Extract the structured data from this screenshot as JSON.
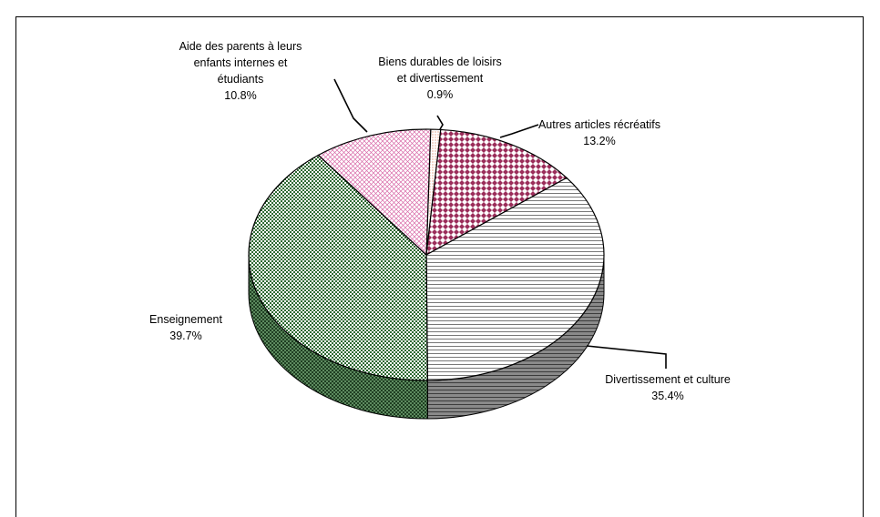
{
  "chart_data": {
    "type": "pie",
    "title": "",
    "three_d": true,
    "legend": "none",
    "slices": [
      {
        "label_lines": [
          "Biens durables de loisirs",
          "et divertissement"
        ],
        "value": 0.9,
        "value_label": "0.9%",
        "fill": "#f4d8cc",
        "pattern": "dense-dots"
      },
      {
        "label_lines": [
          "Autres articles récréatifs"
        ],
        "value": 13.2,
        "value_label": "13.2%",
        "fill": "#9b2d5a",
        "pattern": "diamonds"
      },
      {
        "label_lines": [
          "Divertissement et culture"
        ],
        "value": 35.4,
        "value_label": "35.4%",
        "fill": "#ffffff",
        "pattern": "horizontal-lines"
      },
      {
        "label_lines": [
          "Enseignement"
        ],
        "value": 39.7,
        "value_label": "39.7%",
        "fill": "#2f6a33",
        "pattern": "checker"
      },
      {
        "label_lines": [
          "Aide des parents à leurs",
          "enfants internes et",
          "étudiants"
        ],
        "value": 10.8,
        "value_label": "10.8%",
        "fill": "#d96aa8",
        "pattern": "crosshatch"
      }
    ]
  }
}
